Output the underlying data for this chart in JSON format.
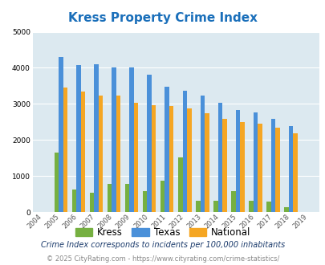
{
  "title": "Kress Property Crime Index",
  "years": [
    2004,
    2005,
    2006,
    2007,
    2008,
    2009,
    2010,
    2011,
    2012,
    2013,
    2014,
    2015,
    2016,
    2017,
    2018,
    2019
  ],
  "kress": [
    0,
    1650,
    630,
    540,
    790,
    790,
    570,
    870,
    1520,
    310,
    310,
    590,
    310,
    300,
    140,
    0
  ],
  "texas": [
    0,
    4300,
    4070,
    4100,
    4000,
    4020,
    3800,
    3480,
    3360,
    3240,
    3040,
    2840,
    2770,
    2580,
    2380,
    0
  ],
  "national": [
    0,
    3450,
    3340,
    3240,
    3220,
    3040,
    2960,
    2940,
    2880,
    2730,
    2590,
    2490,
    2450,
    2340,
    2190,
    0
  ],
  "kress_color": "#76b041",
  "texas_color": "#4a90d9",
  "national_color": "#f5a623",
  "bg_color": "#dce9f0",
  "title_color": "#1a6fba",
  "ylim": [
    0,
    5000
  ],
  "yticks": [
    0,
    1000,
    2000,
    3000,
    4000,
    5000
  ],
  "subtitle": "Crime Index corresponds to incidents per 100,000 inhabitants",
  "footer": "© 2025 CityRating.com - https://www.cityrating.com/crime-statistics/",
  "legend_labels": [
    "Kress",
    "Texas",
    "National"
  ],
  "subtitle_color": "#1a3a6b",
  "footer_color": "#888888",
  "footer_link_color": "#3a7abf"
}
